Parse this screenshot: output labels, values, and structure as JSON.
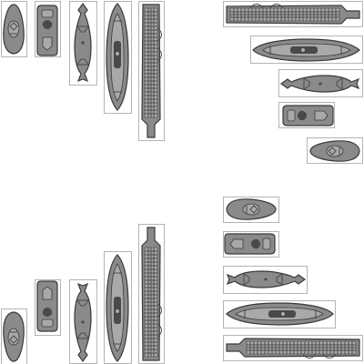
{
  "sheet": {
    "background": "#ffffff",
    "frame_color": "#b4b4b4",
    "hull_fill": "#8a8a8a",
    "hull_light": "#a9a9a9",
    "hull_stroke": "#3a3a3a",
    "detail_color": "#4a4a4a"
  },
  "ships": [
    {
      "id": "scout",
      "length": 2,
      "variant": "pod"
    },
    {
      "id": "patrol",
      "length": 2,
      "variant": "cabin"
    },
    {
      "id": "submarine",
      "length": 2,
      "variant": "sub"
    },
    {
      "id": "cruiser",
      "length": 3,
      "variant": "cruiser"
    },
    {
      "id": "carrier",
      "length": 4,
      "variant": "carrier"
    }
  ],
  "groups": [
    {
      "id": "top-left-vertical",
      "orientation": "vertical",
      "facing": "up"
    },
    {
      "id": "top-right-horizontal",
      "orientation": "horizontal",
      "facing": "left"
    },
    {
      "id": "bottom-left-vertical",
      "orientation": "vertical",
      "facing": "down"
    },
    {
      "id": "bottom-right-horizontal",
      "orientation": "horizontal",
      "facing": "right"
    }
  ]
}
